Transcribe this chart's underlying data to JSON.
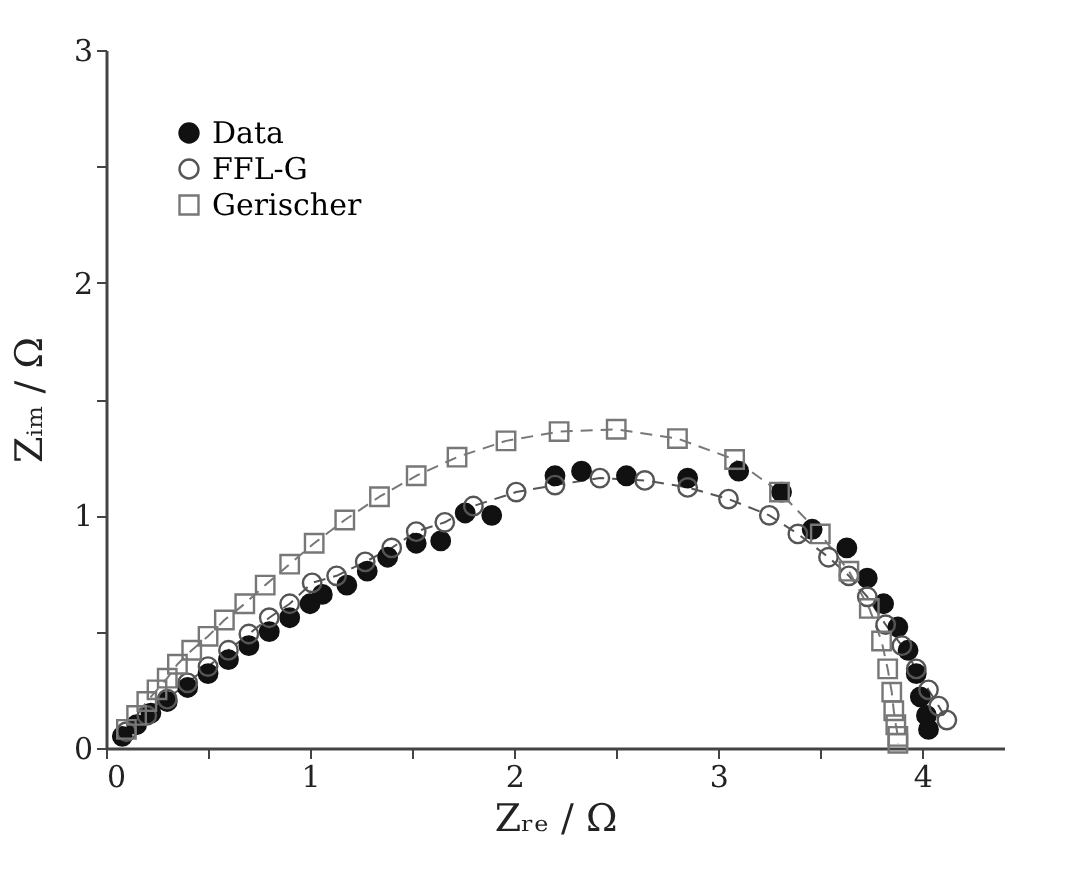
{
  "chart_data": {
    "type": "scatter",
    "xlabel": "Zᵣₑ / Ω",
    "ylabel": "Zᵢₘ / Ω",
    "xlim": [
      0,
      4.4
    ],
    "ylim": [
      0,
      3
    ],
    "xticks": [
      0,
      {
        "value": 0.5,
        "label": null
      },
      1,
      {
        "value": 1.5,
        "label": null
      },
      2,
      {
        "value": 2.5,
        "label": null
      },
      3,
      {
        "value": 3.5,
        "label": null
      },
      4
    ],
    "yticks": [
      0,
      {
        "value": 0.5,
        "label": null
      },
      1,
      {
        "value": 1.5,
        "label": null
      },
      2,
      {
        "value": 2.5,
        "label": null
      },
      3
    ],
    "grid": false,
    "legend": "top left",
    "series": [
      {
        "name": "Data",
        "marker": "circle",
        "color": "#111111",
        "x": [
          0.08,
          0.15,
          0.22,
          0.3,
          0.4,
          0.5,
          0.6,
          0.7,
          0.8,
          0.9,
          1.0,
          1.06,
          1.18,
          1.28,
          1.38,
          1.52,
          1.64,
          1.76,
          1.89,
          2.2,
          2.33,
          2.55,
          2.85,
          3.1,
          3.31,
          3.46,
          3.63,
          3.73,
          3.81,
          3.88,
          3.93,
          3.97,
          3.99,
          4.02,
          4.03
        ],
        "values": [
          0.05,
          0.1,
          0.15,
          0.2,
          0.26,
          0.32,
          0.38,
          0.44,
          0.5,
          0.56,
          0.62,
          0.66,
          0.7,
          0.76,
          0.82,
          0.88,
          0.89,
          1.01,
          1.0,
          1.17,
          1.19,
          1.17,
          1.16,
          1.19,
          1.1,
          0.94,
          0.86,
          0.73,
          0.62,
          0.52,
          0.42,
          0.32,
          0.22,
          0.14,
          0.08
        ]
      },
      {
        "name": "FFL-G",
        "type": "line",
        "line_style": "dashed",
        "marker": "circle",
        "color": "#555555",
        "x": [
          0.1,
          0.2,
          0.3,
          0.4,
          0.5,
          0.6,
          0.7,
          0.8,
          0.9,
          1.01,
          1.13,
          1.27,
          1.4,
          1.52,
          1.66,
          1.8,
          2.01,
          2.2,
          2.42,
          2.64,
          2.85,
          3.05,
          3.25,
          3.39,
          3.54,
          3.64,
          3.73,
          3.82,
          3.9,
          3.97,
          4.03,
          4.08,
          4.12
        ],
        "values": [
          0.07,
          0.14,
          0.21,
          0.28,
          0.35,
          0.42,
          0.49,
          0.56,
          0.62,
          0.71,
          0.74,
          0.8,
          0.86,
          0.93,
          0.97,
          1.04,
          1.1,
          1.13,
          1.16,
          1.15,
          1.12,
          1.07,
          1.0,
          0.92,
          0.82,
          0.74,
          0.65,
          0.53,
          0.44,
          0.34,
          0.25,
          0.18,
          0.12
        ]
      },
      {
        "name": "Gerischer",
        "type": "line",
        "line_style": "dashed",
        "marker": "square",
        "color": "#777777",
        "x": [
          0.1,
          0.15,
          0.2,
          0.25,
          0.3,
          0.35,
          0.42,
          0.5,
          0.58,
          0.68,
          0.78,
          0.9,
          1.02,
          1.17,
          1.34,
          1.52,
          1.72,
          1.96,
          2.22,
          2.5,
          2.8,
          3.08,
          3.3,
          3.5,
          3.64,
          3.74,
          3.8,
          3.83,
          3.85,
          3.86,
          3.87,
          3.88,
          3.88
        ],
        "values": [
          0.08,
          0.14,
          0.2,
          0.25,
          0.3,
          0.36,
          0.42,
          0.48,
          0.55,
          0.62,
          0.7,
          0.79,
          0.88,
          0.98,
          1.08,
          1.17,
          1.25,
          1.32,
          1.36,
          1.37,
          1.33,
          1.24,
          1.1,
          0.92,
          0.76,
          0.6,
          0.46,
          0.34,
          0.24,
          0.16,
          0.1,
          0.05,
          0.02
        ]
      }
    ]
  }
}
